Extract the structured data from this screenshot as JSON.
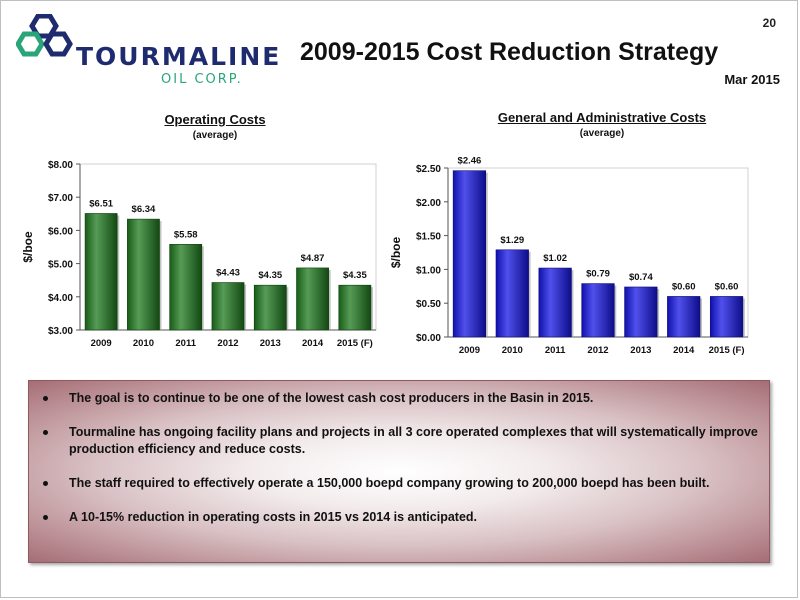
{
  "page_number": "20",
  "logo": {
    "name": "TOURMALINE",
    "sub": "OIL CORP."
  },
  "title": "2009-2015 Cost Reduction Strategy",
  "date": "Mar 2015",
  "colors": {
    "opex_bar": "#1e7a1e",
    "ga_bar": "#1515e6",
    "bullet_box_edge": "#a66d75"
  },
  "chart_data": [
    {
      "type": "bar",
      "title": "Operating Costs",
      "subtitle": "(average)",
      "ylabel": "$/boe",
      "categories": [
        "2009",
        "2010",
        "2011",
        "2012",
        "2013",
        "2014",
        "2015 (F)"
      ],
      "values": [
        6.51,
        6.34,
        5.58,
        4.43,
        4.35,
        4.87,
        4.35
      ],
      "data_labels": [
        "$6.51",
        "$6.34",
        "$5.58",
        "$4.43",
        "$4.35",
        "$4.87",
        "$4.35"
      ],
      "ylim": [
        3,
        8
      ],
      "yticks": [
        3,
        4,
        5,
        6,
        7,
        8
      ],
      "ytick_labels": [
        "$3.00",
        "$4.00",
        "$5.00",
        "$6.00",
        "$7.00",
        "$8.00"
      ],
      "grid": false,
      "legend": "none"
    },
    {
      "type": "bar",
      "title": "General and Administrative Costs",
      "subtitle": "(average)",
      "ylabel": "$/boe",
      "categories": [
        "2009",
        "2010",
        "2011",
        "2012",
        "2013",
        "2014",
        "2015 (F)"
      ],
      "values": [
        2.46,
        1.29,
        1.02,
        0.79,
        0.74,
        0.6,
        0.6
      ],
      "data_labels": [
        "$2.46",
        "$1.29",
        "$1.02",
        "$0.79",
        "$0.74",
        "$0.60",
        "$0.60"
      ],
      "ylim": [
        0,
        2.5
      ],
      "yticks": [
        0,
        0.5,
        1,
        1.5,
        2,
        2.5
      ],
      "ytick_labels": [
        "$0.00",
        "$0.50",
        "$1.00",
        "$1.50",
        "$2.00",
        "$2.50"
      ],
      "grid": false,
      "legend": "none"
    }
  ],
  "bullets": [
    "The goal is to continue to be one of the lowest cash cost producers in the Basin in 2015.",
    "Tourmaline has ongoing facility plans and projects in all 3 core operated complexes that will systematically improve production efficiency and reduce costs.",
    "The staff required to effectively operate a 150,000 boepd company growing to 200,000 boepd has been built.",
    "A 10-15% reduction in operating costs in 2015 vs 2014 is anticipated."
  ]
}
